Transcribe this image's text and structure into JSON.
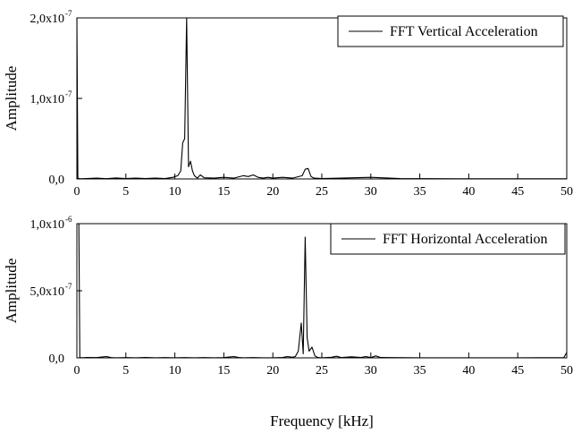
{
  "chart_data": [
    {
      "type": "line",
      "legend": "FFT Vertical Acceleration",
      "legend_position": "top-right",
      "ylabel": "Amplitude",
      "xlabel": "",
      "xlim": [
        0,
        50
      ],
      "ylim": [
        0,
        2e-07
      ],
      "grid": false,
      "x_ticks": [
        "0",
        "5",
        "10",
        "15",
        "20",
        "25",
        "30",
        "35",
        "40",
        "45",
        "50"
      ],
      "y_ticks": [
        {
          "value": 0,
          "label": "0,0",
          "exp": ""
        },
        {
          "value": 1e-07,
          "label": "1,0x10",
          "exp": "-7"
        },
        {
          "value": 2e-07,
          "label": "2,0x10",
          "exp": "-7"
        }
      ],
      "series": [
        {
          "x": [
            0,
            0.1,
            0.3,
            1,
            2,
            3,
            4,
            5,
            6,
            7,
            8,
            9,
            9.8,
            10.3,
            10.6,
            10.8,
            11.0,
            11.2,
            11.4,
            11.6,
            11.8,
            12.0,
            12.3,
            12.6,
            13,
            14,
            15,
            16,
            17,
            17.5,
            18,
            18.5,
            19,
            19.5,
            20,
            21,
            22,
            23,
            23.3,
            23.6,
            23.9,
            24.2,
            25,
            27,
            30,
            33,
            36,
            40,
            45,
            50
          ],
          "values": [
            2e-07,
            1e-09,
            2e-10,
            5e-10,
            1e-09,
            3e-10,
            1.2e-09,
            6e-10,
            1.1e-09,
            4e-10,
            1e-09,
            5e-10,
            2e-09,
            4e-09,
            1e-08,
            4.5e-08,
            5e-08,
            2e-07,
            1.5e-08,
            2.2e-08,
            1e-08,
            4e-09,
            1e-09,
            5e-09,
            1.5e-09,
            1e-09,
            2e-09,
            1e-09,
            4e-09,
            3e-09,
            5e-09,
            2e-09,
            1e-09,
            2e-09,
            1e-09,
            2e-09,
            1e-09,
            4e-09,
            1.2e-08,
            1.3e-08,
            3e-09,
            1e-09,
            5e-10,
            1e-09,
            2e-09,
            5e-10,
            3e-10,
            2e-10,
            2e-10,
            2e-10
          ]
        }
      ]
    },
    {
      "type": "line",
      "legend": "FFT Horizontal Acceleration",
      "legend_position": "top-right",
      "ylabel": "Amplitude",
      "xlabel": "Frequency [kHz]",
      "xlim": [
        0,
        50
      ],
      "ylim": [
        0,
        1e-06
      ],
      "grid": false,
      "x_ticks": [
        "0",
        "5",
        "10",
        "15",
        "20",
        "25",
        "30",
        "35",
        "40",
        "45",
        "50"
      ],
      "y_ticks": [
        {
          "value": 0,
          "label": "0,0",
          "exp": ""
        },
        {
          "value": 5e-07,
          "label": "5,0x10",
          "exp": "-7"
        },
        {
          "value": 1e-06,
          "label": "1,0x10",
          "exp": "-6"
        }
      ],
      "series": [
        {
          "x": [
            0.2,
            0.3,
            0.5,
            1,
            2,
            3,
            3.5,
            4,
            5,
            6,
            7,
            8,
            9,
            10,
            11,
            12,
            13,
            14,
            15,
            16,
            16.5,
            17,
            18,
            19,
            20,
            21,
            21.5,
            22,
            22.3,
            22.6,
            22.9,
            23.1,
            23.3,
            23.5,
            23.7,
            24.0,
            24.3,
            24.6,
            25,
            26,
            26.5,
            27,
            28,
            29,
            29.5,
            30,
            30.5,
            31,
            32,
            35,
            40,
            45,
            49.7,
            50
          ],
          "values": [
            1e-06,
            3e-09,
            1e-09,
            3e-09,
            2e-09,
            1e-08,
            2e-09,
            1e-09,
            2e-09,
            1e-09,
            3e-09,
            1e-09,
            2e-09,
            1e-09,
            2e-09,
            1e-09,
            2e-09,
            1e-09,
            2e-09,
            1e-08,
            3e-09,
            1e-09,
            2e-09,
            1e-09,
            1e-09,
            3e-09,
            1e-08,
            5e-09,
            1e-08,
            5e-08,
            2.6e-07,
            3e-08,
            9e-07,
            1.5e-07,
            5e-08,
            8e-08,
            1.5e-08,
            3e-09,
            1e-09,
            5e-09,
            1.2e-08,
            2e-09,
            8e-09,
            3e-09,
            1e-08,
            2e-09,
            1.5e-08,
            3e-09,
            2e-09,
            1e-09,
            1e-09,
            1e-09,
            2e-09,
            4e-08
          ]
        }
      ]
    }
  ]
}
